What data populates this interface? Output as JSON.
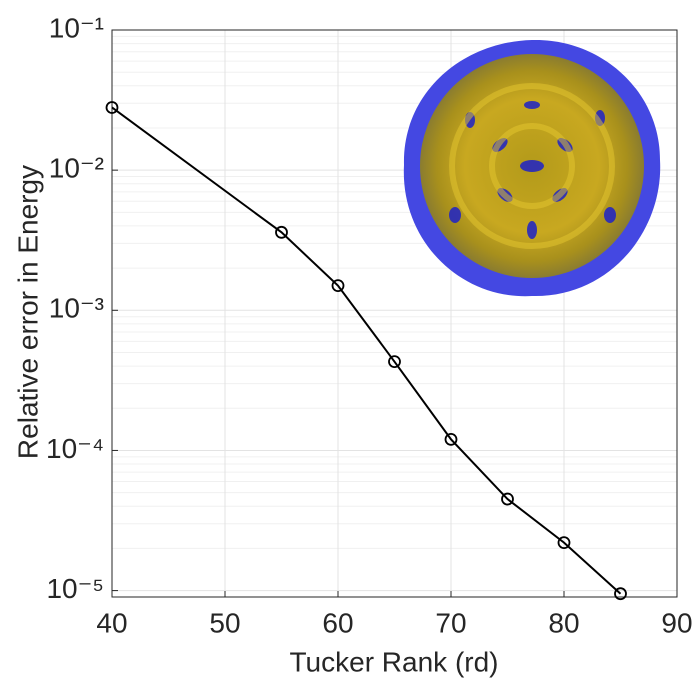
{
  "chart_data": {
    "type": "line",
    "x_label": "Tucker Rank (rd)",
    "y_label": "Relative error in Energy",
    "x": [
      40,
      55,
      60,
      65,
      70,
      75,
      80,
      85
    ],
    "series": [
      {
        "color": "#000000",
        "values": [
          0.028,
          0.0036,
          0.0015,
          0.00043,
          0.00012,
          4.5e-05,
          2.2e-05,
          9.5e-06
        ]
      }
    ],
    "xlim": [
      40,
      90
    ],
    "xticks": [
      40,
      50,
      60,
      70,
      80,
      90
    ],
    "ylim": [
      9e-06,
      0.1
    ],
    "yticks": [
      {
        "value": 1e-05,
        "label": "10⁻⁵"
      },
      {
        "value": 0.0001,
        "label": "10⁻⁴"
      },
      {
        "value": 0.001,
        "label": "10⁻³"
      },
      {
        "value": 0.01,
        "label": "10⁻²"
      },
      {
        "value": 0.1,
        "label": "10⁻¹"
      }
    ],
    "log_y": true,
    "grid": true,
    "minor_grid": true
  }
}
